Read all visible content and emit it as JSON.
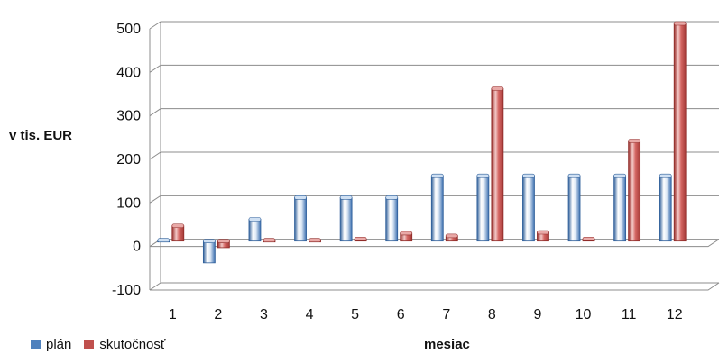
{
  "chart_data": {
    "type": "bar",
    "title": "",
    "xlabel": "mesiac",
    "ylabel": "v tis. EUR",
    "categories": [
      "1",
      "2",
      "3",
      "4",
      "5",
      "6",
      "7",
      "8",
      "9",
      "10",
      "11",
      "12"
    ],
    "series": [
      {
        "name": "plán",
        "color": "#4f81bd",
        "values": [
          2,
          -50,
          50,
          100,
          100,
          100,
          150,
          150,
          150,
          150,
          150,
          150
        ]
      },
      {
        "name": "skutočnosť",
        "color": "#c0504d",
        "values": [
          35,
          -15,
          2,
          2,
          5,
          18,
          12,
          350,
          20,
          5,
          230,
          500
        ]
      }
    ],
    "ylim": [
      -100,
      500
    ],
    "yticks": [
      -100,
      0,
      100,
      200,
      300,
      400,
      500
    ],
    "ytick_labels": [
      "-100",
      "0",
      "100",
      "200",
      "300",
      "400",
      "500"
    ],
    "grid": true,
    "legend_position": "bottom-left"
  }
}
